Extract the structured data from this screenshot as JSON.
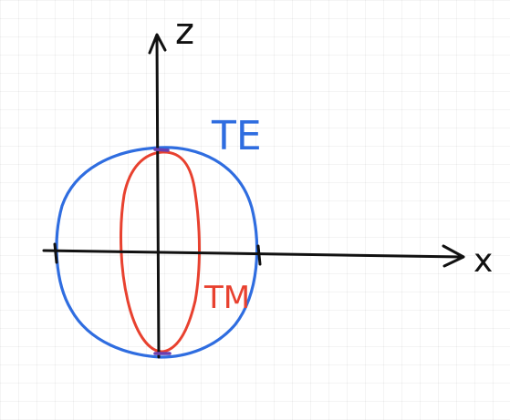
{
  "diagram": {
    "axes": {
      "vertical_label": "z",
      "horizontal_label": "x"
    },
    "curves": [
      {
        "label": "TE",
        "color": "#2f6de0"
      },
      {
        "label": "TM",
        "color": "#e8412f"
      }
    ],
    "axis_color": "#111111",
    "grid_color": "#ebebeb"
  }
}
